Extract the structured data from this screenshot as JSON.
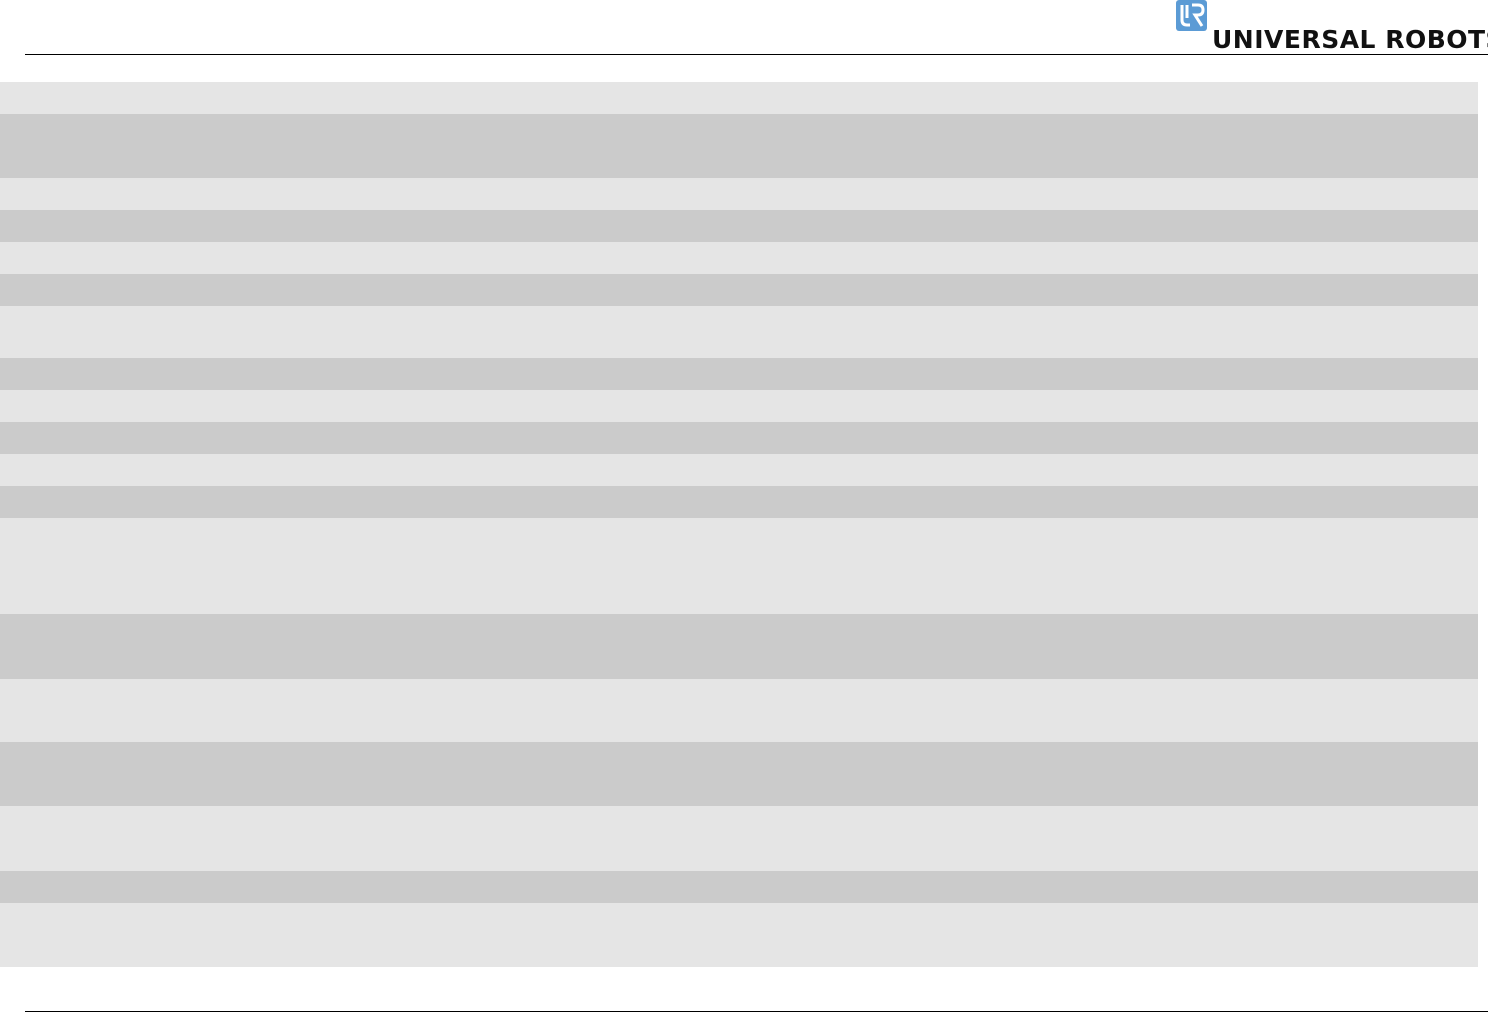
{
  "header": {
    "logo_text": "UNIVERSAL ROBOTS",
    "logo_mark": "UR",
    "brand_color": "#5b9bd5"
  },
  "table": {
    "row_colors": [
      "#e5e5e5",
      "#cbcbcb"
    ]
  }
}
